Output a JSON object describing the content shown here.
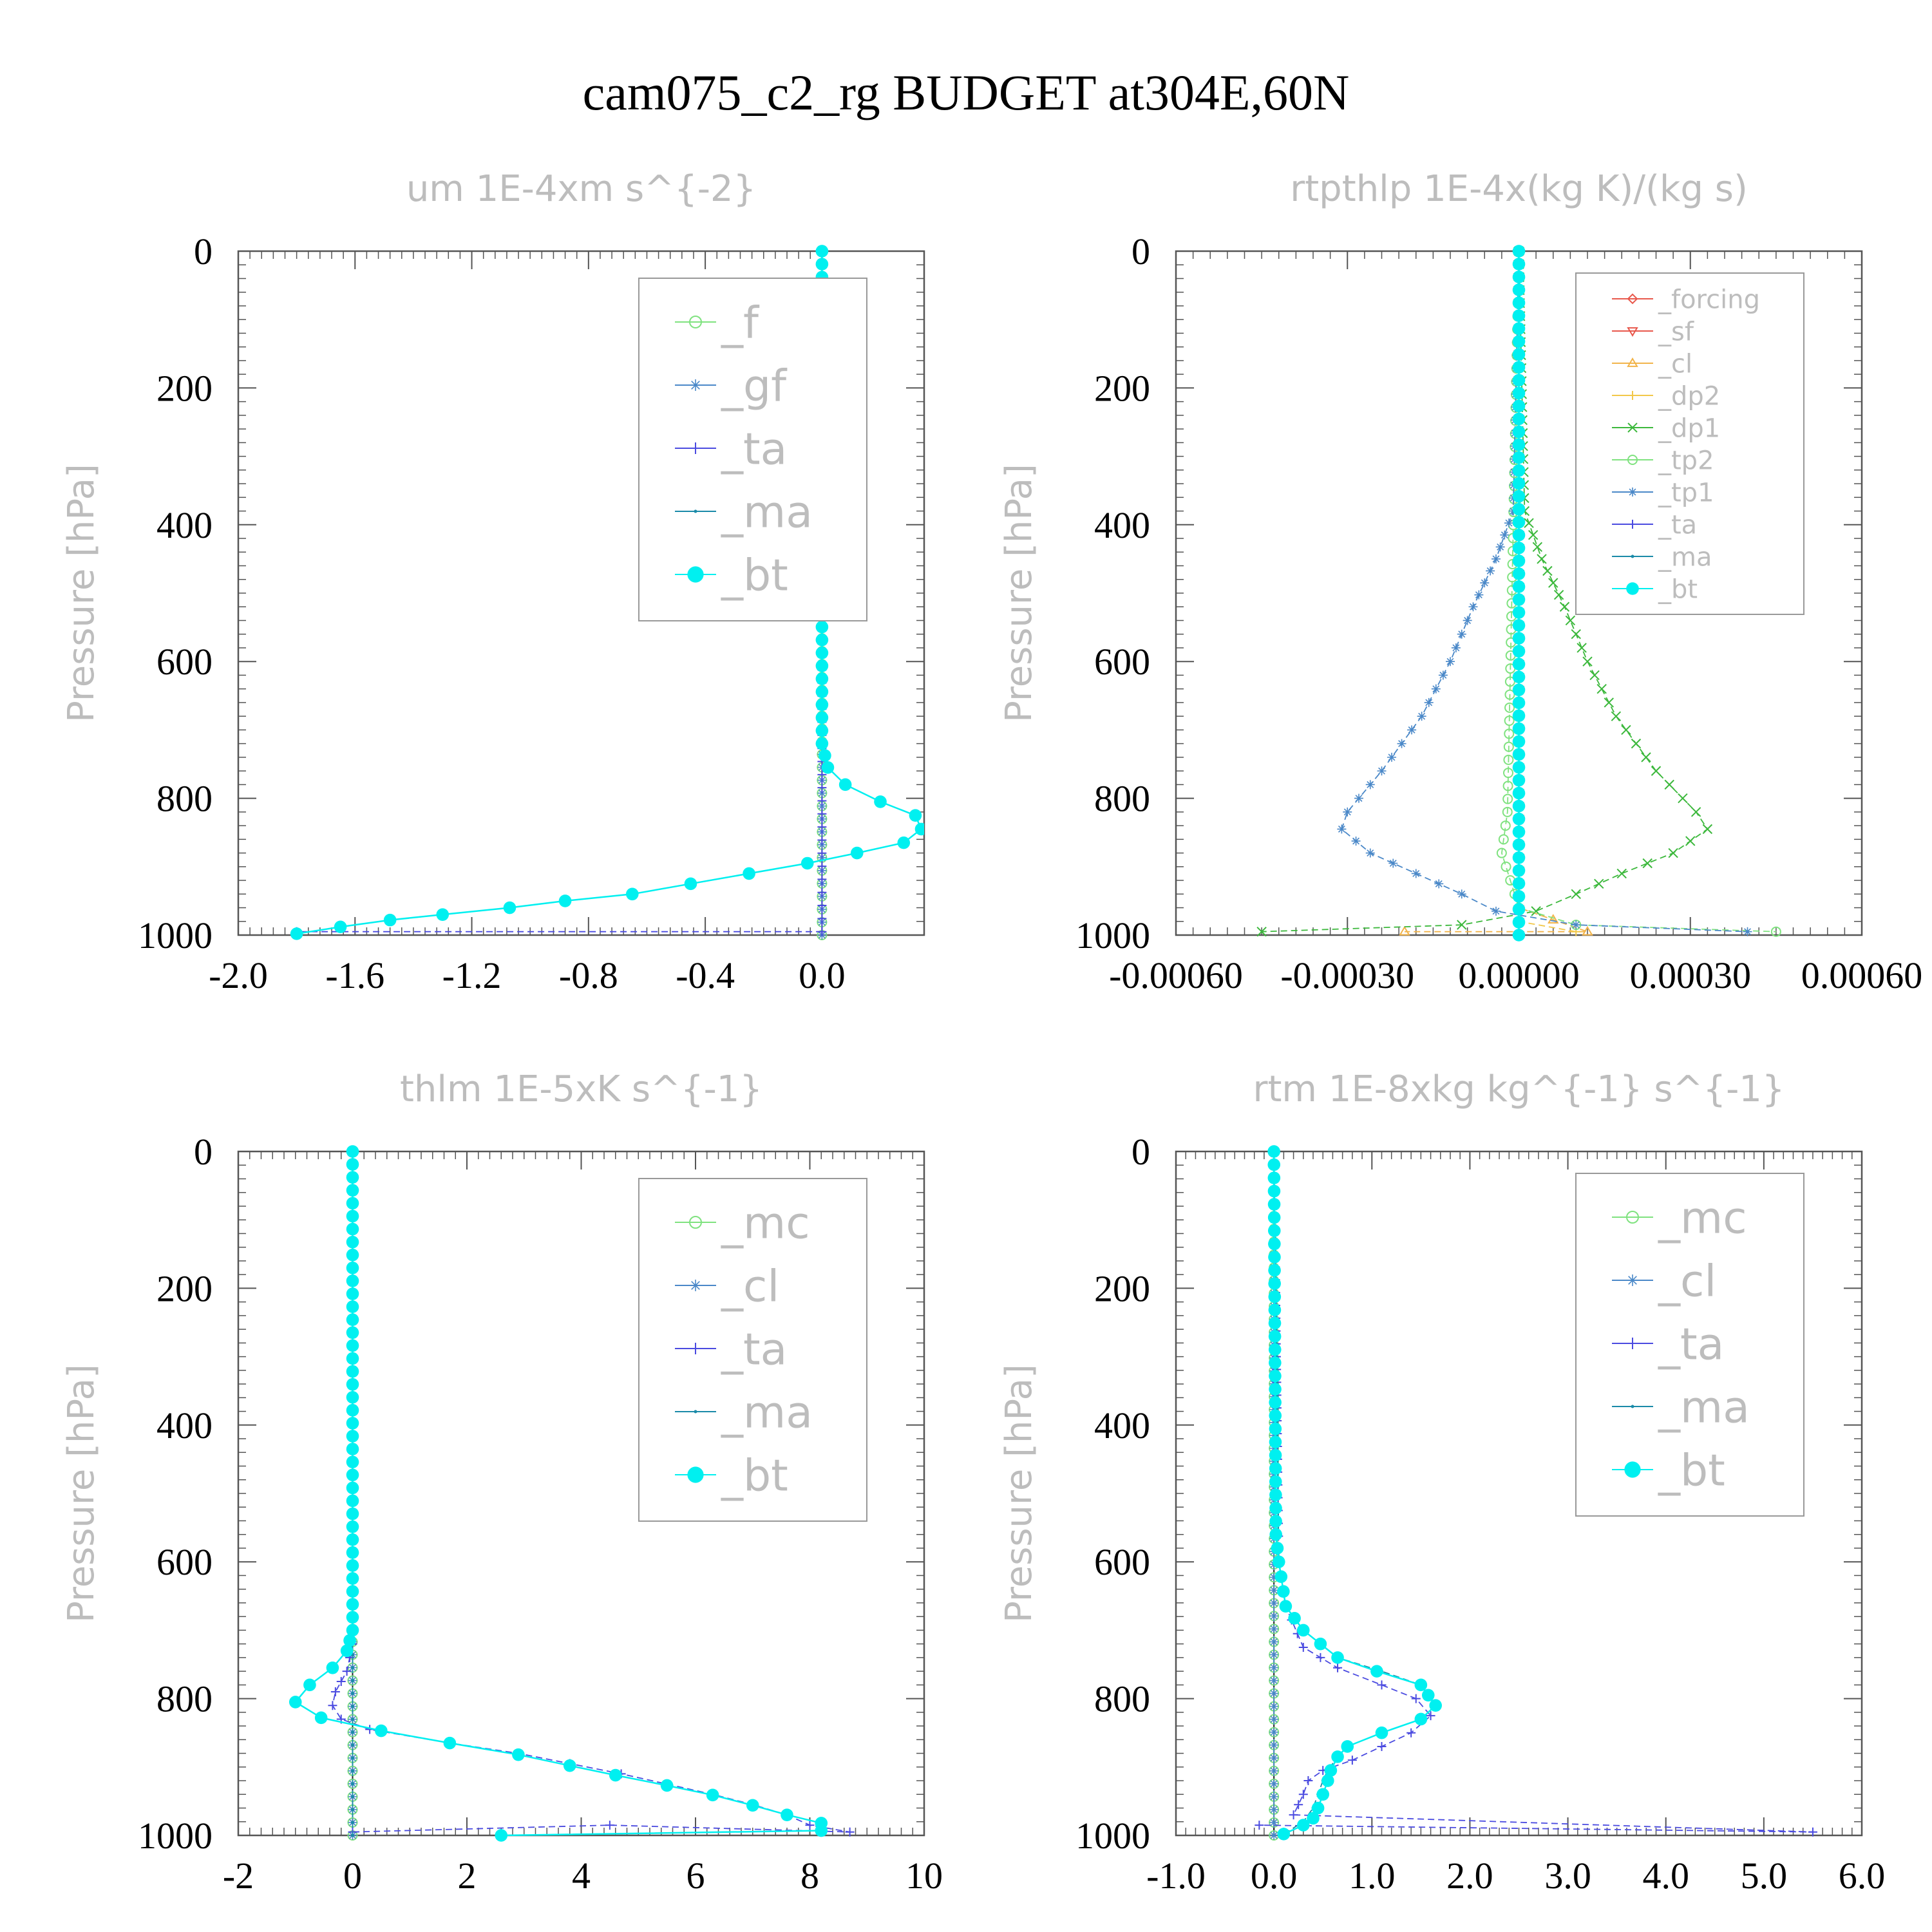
{
  "title": "cam075_c2_rg  BUDGET at304E,60N",
  "colors": {
    "forcing": "#e8584c",
    "sf": "#e8584c",
    "cl_warm": "#f2b44a",
    "dp2": "#f2c84a",
    "dp1": "#3cb83c",
    "tp2": "#7fe27f",
    "tp1": "#4a88c8",
    "ta": "#4a4ae0",
    "ma": "#1a8aa8",
    "bt": "#00f0f0",
    "f": "#7fe27f",
    "gf": "#4a88c8",
    "mc": "#7fe27f",
    "cl": "#4a88c8"
  },
  "chart_data": [
    {
      "type": "line",
      "title": "um  1E-4xm s^{-2}",
      "ylabel": "Pressure [hPa]",
      "xlim": [
        -2.0,
        0.35
      ],
      "ylim": [
        1000,
        0
      ],
      "xticks": [
        -2.0,
        -1.6,
        -1.2,
        -0.8,
        -0.4,
        0.0
      ],
      "xtick_labels": [
        "-2.0",
        "-1.6",
        "-1.2",
        "-0.8",
        "-0.4",
        "0.0"
      ],
      "yticks": [
        0,
        200,
        400,
        600,
        800,
        1000
      ],
      "ytick_labels": [
        "0",
        "200",
        "400",
        "600",
        "800",
        "1000"
      ],
      "legend": [
        "_f",
        "_gf",
        "_ta",
        "_ma",
        "_bt"
      ],
      "series": [
        {
          "name": "_f",
          "color_key": "f",
          "marker": "circle-open",
          "x": [
            0,
            0
          ],
          "y": [
            0,
            1000
          ]
        },
        {
          "name": "_gf",
          "color_key": "gf",
          "marker": "star",
          "x": [
            0,
            0
          ],
          "y": [
            0,
            1000
          ]
        },
        {
          "name": "_ta",
          "color_key": "ta",
          "marker": "plus",
          "x": [
            0,
            0,
            -1.8
          ],
          "y": [
            0,
            995,
            995
          ]
        },
        {
          "name": "_ma",
          "color_key": "ma",
          "marker": "dot",
          "x": [
            0,
            0,
            0.02,
            0.08,
            0.2,
            0.32,
            0.34,
            0.28,
            0.12,
            -0.05,
            -0.25,
            -0.45,
            -0.65,
            -0.88,
            -1.07,
            -1.3,
            -1.48,
            -1.65,
            -1.8
          ],
          "y": [
            0,
            720,
            755,
            780,
            805,
            825,
            845,
            865,
            880,
            895,
            910,
            925,
            940,
            950,
            960,
            970,
            978,
            988,
            998
          ]
        },
        {
          "name": "_bt",
          "color_key": "bt",
          "marker": "dot-big",
          "x": [
            0,
            0,
            0.02,
            0.08,
            0.2,
            0.32,
            0.34,
            0.28,
            0.12,
            -0.05,
            -0.25,
            -0.45,
            -0.65,
            -0.88,
            -1.07,
            -1.3,
            -1.48,
            -1.65,
            -1.8
          ],
          "y": [
            0,
            720,
            755,
            780,
            805,
            825,
            845,
            865,
            880,
            895,
            910,
            925,
            940,
            950,
            960,
            970,
            978,
            988,
            998
          ]
        }
      ]
    },
    {
      "type": "line",
      "title": "rtpthlp  1E-4x(kg K)/(kg s)",
      "ylabel": "Pressure [hPa]",
      "xlim": [
        -0.0006,
        0.0006
      ],
      "ylim": [
        1000,
        0
      ],
      "xticks": [
        -0.0006,
        -0.0003,
        0.0,
        0.0003,
        0.0006
      ],
      "xtick_labels": [
        "-0.00060",
        "-0.00030",
        "0.00000",
        "0.00030",
        "0.00060"
      ],
      "yticks": [
        0,
        200,
        400,
        600,
        800,
        1000
      ],
      "ytick_labels": [
        "0",
        "200",
        "400",
        "600",
        "800",
        "1000"
      ],
      "legend": [
        "_forcing",
        "_sf",
        "_cl",
        "_dp2",
        "_dp1",
        "_tp2",
        "_tp1",
        "_ta",
        "_ma",
        "_bt"
      ],
      "series": [
        {
          "name": "_forcing",
          "color_key": "forcing",
          "marker": "diamond",
          "x": [
            0,
            0
          ],
          "y": [
            0,
            1000
          ]
        },
        {
          "name": "_sf",
          "color_key": "sf",
          "marker": "triangle-down",
          "x": [
            0,
            0
          ],
          "y": [
            0,
            1000
          ]
        },
        {
          "name": "_cl",
          "color_key": "cl_warm",
          "marker": "triangle-up",
          "x": [
            0,
            0,
            0.00012,
            -0.0002
          ],
          "y": [
            0,
            960,
            995,
            995
          ]
        },
        {
          "name": "_dp2",
          "color_key": "dp2",
          "marker": "plus",
          "x": [
            0,
            0,
            0.0001
          ],
          "y": [
            0,
            980,
            995
          ]
        },
        {
          "name": "_dp1",
          "color_key": "dp1",
          "marker": "x",
          "x": [
            0,
            1e-05,
            4e-05,
            8e-05,
            0.00012,
            0.00017,
            0.00024,
            0.00031,
            0.00033,
            0.00027,
            0.00018,
            0.0001,
            3e-05,
            -0.0001,
            -0.00045
          ],
          "y": [
            0,
            380,
            450,
            520,
            600,
            680,
            760,
            820,
            845,
            880,
            910,
            940,
            965,
            985,
            995
          ]
        },
        {
          "name": "_tp2",
          "color_key": "tp2",
          "marker": "circle-open",
          "x": [
            0,
            -2e-05,
            -3e-05,
            0,
            0.0001,
            0.00045
          ],
          "y": [
            0,
            820,
            880,
            960,
            985,
            995
          ]
        },
        {
          "name": "_tp1",
          "color_key": "tp1",
          "marker": "star",
          "x": [
            0,
            -1e-05,
            -4e-05,
            -8e-05,
            -0.00012,
            -0.00017,
            -0.00024,
            -0.0003,
            -0.00031,
            -0.00026,
            -0.00018,
            -0.0001,
            -4e-05,
            0.0001,
            0.0004
          ],
          "y": [
            0,
            380,
            450,
            520,
            600,
            680,
            760,
            820,
            845,
            880,
            910,
            940,
            965,
            985,
            995
          ]
        },
        {
          "name": "_ta",
          "color_key": "ta",
          "marker": "plus",
          "x": [
            0,
            0
          ],
          "y": [
            0,
            1000
          ]
        },
        {
          "name": "_ma",
          "color_key": "ma",
          "marker": "dot",
          "x": [
            0,
            0
          ],
          "y": [
            0,
            1000
          ]
        },
        {
          "name": "_bt",
          "color_key": "bt",
          "marker": "dot-big",
          "x": [
            0,
            0
          ],
          "y": [
            0,
            1000
          ]
        }
      ]
    },
    {
      "type": "line",
      "title": "thlm  1E-5xK s^{-1}",
      "ylabel": "Pressure [hPa]",
      "xlim": [
        -2,
        10
      ],
      "ylim": [
        1000,
        0
      ],
      "xticks": [
        -2,
        0,
        2,
        4,
        6,
        8,
        10
      ],
      "xtick_labels": [
        "-2",
        "0",
        "2",
        "4",
        "6",
        "8",
        "10"
      ],
      "yticks": [
        0,
        200,
        400,
        600,
        800,
        1000
      ],
      "ytick_labels": [
        "0",
        "200",
        "400",
        "600",
        "800",
        "1000"
      ],
      "legend": [
        "_mc",
        "_cl",
        "_ta",
        "_ma",
        "_bt"
      ],
      "series": [
        {
          "name": "_mc",
          "color_key": "mc",
          "marker": "circle-open",
          "x": [
            0,
            0
          ],
          "y": [
            0,
            1000
          ]
        },
        {
          "name": "_cl",
          "color_key": "cl",
          "marker": "star",
          "x": [
            0,
            0
          ],
          "y": [
            0,
            1000
          ]
        },
        {
          "name": "_ta",
          "color_key": "ta",
          "marker": "plus",
          "x": [
            0,
            0,
            -0.1,
            -0.3,
            -0.35,
            -0.2,
            0.3,
            1.7,
            2.9,
            3.8,
            4.7,
            5.5,
            6.3,
            7.0,
            7.6,
            8.0,
            8.7,
            4.5,
            0
          ],
          "y": [
            0,
            720,
            760,
            790,
            810,
            830,
            845,
            865,
            880,
            895,
            910,
            925,
            940,
            955,
            970,
            985,
            995,
            985,
            995
          ]
        },
        {
          "name": "_ma",
          "color_key": "ma",
          "marker": "dot",
          "x": [
            0,
            0
          ],
          "y": [
            0,
            1000
          ]
        },
        {
          "name": "_bt",
          "color_key": "bt",
          "marker": "dot-big",
          "x": [
            0,
            0,
            -0.1,
            -0.35,
            -0.75,
            -1.0,
            -0.55,
            0.5,
            1.7,
            2.9,
            3.8,
            4.6,
            5.5,
            6.3,
            7.0,
            7.6,
            8.2,
            8.2,
            2.6
          ],
          "y": [
            0,
            700,
            730,
            755,
            780,
            805,
            828,
            847,
            865,
            882,
            898,
            912,
            927,
            941,
            956,
            970,
            982,
            993,
            1000
          ]
        }
      ]
    },
    {
      "type": "line",
      "title": "rtm  1E-8xkg kg^{-1} s^{-1}",
      "ylabel": "Pressure [hPa]",
      "xlim": [
        -1.0,
        6.0
      ],
      "ylim": [
        1000,
        0
      ],
      "xticks": [
        -1.0,
        0.0,
        1.0,
        2.0,
        3.0,
        4.0,
        5.0,
        6.0
      ],
      "xtick_labels": [
        "-1.0",
        "0.0",
        "1.0",
        "2.0",
        "3.0",
        "4.0",
        "5.0",
        "6.0"
      ],
      "yticks": [
        0,
        200,
        400,
        600,
        800,
        1000
      ],
      "ytick_labels": [
        "0",
        "200",
        "400",
        "600",
        "800",
        "1000"
      ],
      "legend": [
        "_mc",
        "_cl",
        "_ta",
        "_ma",
        "_bt"
      ],
      "series": [
        {
          "name": "_mc",
          "color_key": "mc",
          "marker": "circle-open",
          "x": [
            0,
            0
          ],
          "y": [
            0,
            1000
          ]
        },
        {
          "name": "_cl",
          "color_key": "cl",
          "marker": "star",
          "x": [
            0,
            0
          ],
          "y": [
            0,
            1000
          ]
        },
        {
          "name": "_ta",
          "color_key": "ta",
          "marker": "plus",
          "x": [
            0,
            0.05,
            0.12,
            0.3,
            0.65,
            1.1,
            1.45,
            1.6,
            1.4,
            1.1,
            0.8,
            0.5,
            0.35,
            0.3,
            0.25,
            0.2,
            5.5,
            -0.15
          ],
          "y": [
            0,
            600,
            665,
            725,
            755,
            780,
            800,
            825,
            850,
            870,
            890,
            905,
            920,
            940,
            955,
            970,
            995,
            985
          ]
        },
        {
          "name": "_ma",
          "color_key": "ma",
          "marker": "dot",
          "x": [
            0,
            0.05,
            0.12,
            0.3,
            0.65,
            1.1,
            1.5,
            1.65,
            1.5,
            1.1,
            0.75,
            0.65,
            0.55,
            0.5,
            0.45,
            0.4,
            0.3,
            0.1
          ],
          "y": [
            0,
            600,
            665,
            700,
            740,
            760,
            780,
            810,
            830,
            850,
            870,
            885,
            905,
            920,
            940,
            960,
            980,
            998
          ]
        },
        {
          "name": "_bt",
          "color_key": "bt",
          "marker": "dot-big",
          "x": [
            0,
            0.02,
            0.05,
            0.12,
            0.3,
            0.65,
            1.05,
            1.5,
            1.65,
            1.5,
            1.1,
            0.75,
            0.65,
            0.58,
            0.55,
            0.5,
            0.45,
            0.4,
            0.3,
            0.1
          ],
          "y": [
            0,
            560,
            600,
            665,
            700,
            740,
            760,
            780,
            810,
            830,
            850,
            870,
            885,
            905,
            920,
            940,
            960,
            975,
            985,
            998
          ]
        }
      ]
    }
  ]
}
